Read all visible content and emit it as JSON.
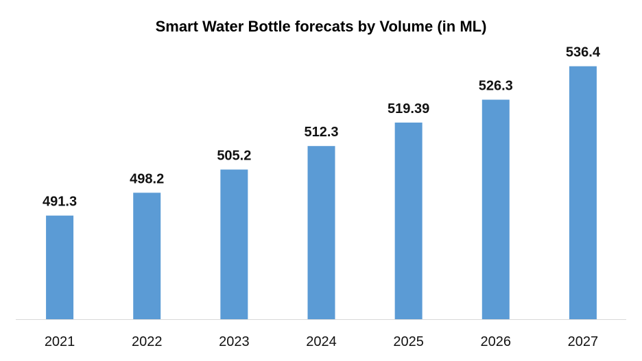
{
  "chart_data": {
    "type": "bar",
    "title": "Smart Water Bottle forecats by Volume (in ML)",
    "xlabel": "",
    "ylabel": "",
    "categories": [
      "2021",
      "2022",
      "2023",
      "2024",
      "2025",
      "2026",
      "2027"
    ],
    "values": [
      491.3,
      498.2,
      505.2,
      512.3,
      519.39,
      526.3,
      536.4
    ],
    "data_labels": [
      "491.3",
      "498.2",
      "505.2",
      "512.3",
      "519.39",
      "526.3",
      "536.4"
    ],
    "ylim": [
      460,
      540
    ],
    "y_axis_visible": false,
    "grid": false,
    "legend": "none",
    "bar_color": "#5B9BD5",
    "axis_color": "#D9D9D9"
  }
}
